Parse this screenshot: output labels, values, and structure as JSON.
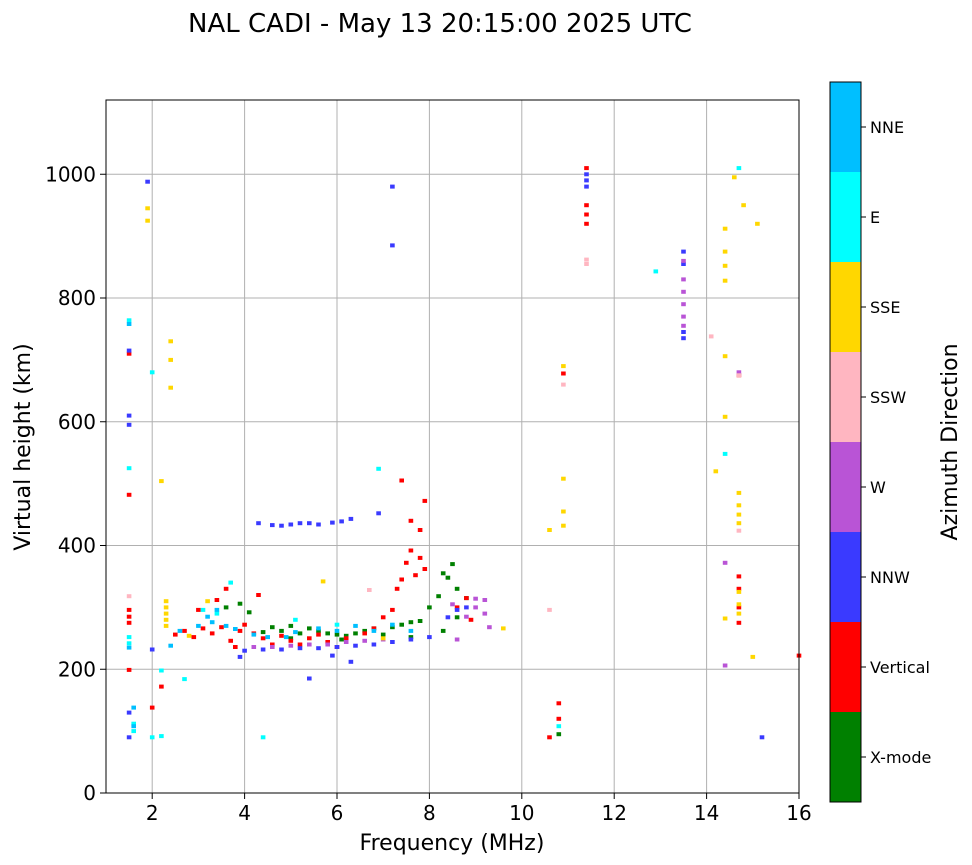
{
  "chart_data": {
    "type": "scatter",
    "title": "NAL CADI - May 13 20:15:00 2025 UTC",
    "xlabel": "Frequency (MHz)",
    "ylabel": "Virtual height (km)",
    "xlim": [
      1,
      16
    ],
    "ylim": [
      0,
      1120
    ],
    "xticks": [
      2,
      4,
      6,
      8,
      10,
      12,
      14,
      16
    ],
    "yticks": [
      0,
      200,
      400,
      600,
      800,
      1000
    ],
    "grid": true,
    "colorbar": {
      "label": "Azimuth Direction",
      "categories": [
        {
          "name": "X-mode",
          "color": "#008000"
        },
        {
          "name": "Vertical",
          "color": "#ff0000"
        },
        {
          "name": "NNW",
          "color": "#3a3aff"
        },
        {
          "name": "W",
          "color": "#b954d6"
        },
        {
          "name": "SSW",
          "color": "#ffb6c1"
        },
        {
          "name": "SSE",
          "color": "#ffd700"
        },
        {
          "name": "E",
          "color": "#00ffff"
        },
        {
          "name": "NNE",
          "color": "#00bfff"
        }
      ]
    },
    "series": [
      {
        "name": "X-mode",
        "points": [
          [
            4.4,
            260
          ],
          [
            4.6,
            268
          ],
          [
            4.8,
            262
          ],
          [
            5.0,
            270
          ],
          [
            5.2,
            258
          ],
          [
            5.4,
            266
          ],
          [
            5.6,
            262
          ],
          [
            5.8,
            258
          ],
          [
            6.0,
            256
          ],
          [
            6.2,
            254
          ],
          [
            6.4,
            258
          ],
          [
            6.6,
            262
          ],
          [
            6.8,
            266
          ],
          [
            7.0,
            256
          ],
          [
            7.2,
            268
          ],
          [
            7.4,
            272
          ],
          [
            7.6,
            276
          ],
          [
            7.8,
            278
          ],
          [
            8.0,
            300
          ],
          [
            8.2,
            318
          ],
          [
            8.3,
            355
          ],
          [
            8.4,
            348
          ],
          [
            8.5,
            370
          ],
          [
            8.6,
            330
          ],
          [
            8.8,
            315
          ],
          [
            8.3,
            262
          ],
          [
            8.6,
            284
          ],
          [
            3.6,
            300
          ],
          [
            3.9,
            306
          ],
          [
            4.1,
            292
          ],
          [
            10.8,
            95
          ],
          [
            5.0,
            250
          ],
          [
            6.1,
            248
          ],
          [
            7.6,
            252
          ]
        ]
      },
      {
        "name": "Vertical",
        "points": [
          [
            1.5,
            285
          ],
          [
            1.5,
            296
          ],
          [
            1.5,
            275
          ],
          [
            1.5,
            710
          ],
          [
            1.5,
            482
          ],
          [
            1.5,
            199
          ],
          [
            2.2,
            172
          ],
          [
            2.5,
            256
          ],
          [
            2.7,
            262
          ],
          [
            2.9,
            252
          ],
          [
            3.1,
            266
          ],
          [
            3.3,
            258
          ],
          [
            3.5,
            268
          ],
          [
            3.7,
            246
          ],
          [
            3.8,
            236
          ],
          [
            3.9,
            262
          ],
          [
            4.0,
            272
          ],
          [
            4.2,
            258
          ],
          [
            4.4,
            250
          ],
          [
            4.6,
            240
          ],
          [
            4.8,
            254
          ],
          [
            5.0,
            246
          ],
          [
            5.2,
            240
          ],
          [
            5.4,
            250
          ],
          [
            5.6,
            256
          ],
          [
            5.8,
            244
          ],
          [
            6.0,
            236
          ],
          [
            6.2,
            250
          ],
          [
            6.6,
            258
          ],
          [
            6.8,
            266
          ],
          [
            7.0,
            284
          ],
          [
            7.2,
            296
          ],
          [
            7.3,
            330
          ],
          [
            7.4,
            345
          ],
          [
            7.5,
            372
          ],
          [
            7.6,
            392
          ],
          [
            7.7,
            352
          ],
          [
            7.8,
            380
          ],
          [
            7.9,
            362
          ],
          [
            7.8,
            425
          ],
          [
            7.6,
            440
          ],
          [
            7.4,
            505
          ],
          [
            7.9,
            472
          ],
          [
            8.6,
            300
          ],
          [
            8.8,
            315
          ],
          [
            8.9,
            280
          ],
          [
            10.8,
            145
          ],
          [
            10.8,
            120
          ],
          [
            10.6,
            90
          ],
          [
            11.4,
            1010
          ],
          [
            11.4,
            950
          ],
          [
            11.4,
            920
          ],
          [
            11.4,
            935
          ],
          [
            10.9,
            678
          ],
          [
            14.7,
            675
          ],
          [
            14.7,
            350
          ],
          [
            14.7,
            330
          ],
          [
            14.7,
            300
          ],
          [
            14.7,
            275
          ],
          [
            16.0,
            222
          ],
          [
            2.0,
            138
          ],
          [
            3.0,
            296
          ],
          [
            3.6,
            330
          ],
          [
            4.3,
            320
          ],
          [
            3.4,
            312
          ]
        ]
      },
      {
        "name": "NNW",
        "points": [
          [
            1.5,
            595
          ],
          [
            1.5,
            610
          ],
          [
            1.5,
            715
          ],
          [
            1.5,
            90
          ],
          [
            1.5,
            130
          ],
          [
            1.9,
            988
          ],
          [
            4.3,
            436
          ],
          [
            4.6,
            433
          ],
          [
            4.8,
            432
          ],
          [
            5.0,
            434
          ],
          [
            5.2,
            436
          ],
          [
            5.4,
            436
          ],
          [
            5.6,
            434
          ],
          [
            5.9,
            437
          ],
          [
            6.1,
            439
          ],
          [
            6.3,
            443
          ],
          [
            6.9,
            452
          ],
          [
            4.0,
            230
          ],
          [
            4.4,
            232
          ],
          [
            4.8,
            232
          ],
          [
            5.2,
            234
          ],
          [
            5.6,
            234
          ],
          [
            6.0,
            236
          ],
          [
            6.4,
            238
          ],
          [
            6.8,
            240
          ],
          [
            7.2,
            244
          ],
          [
            7.6,
            248
          ],
          [
            8.0,
            252
          ],
          [
            8.4,
            284
          ],
          [
            8.6,
            296
          ],
          [
            8.8,
            300
          ],
          [
            5.4,
            185
          ],
          [
            5.9,
            222
          ],
          [
            6.3,
            212
          ],
          [
            7.2,
            980
          ],
          [
            7.2,
            885
          ],
          [
            11.4,
            980
          ],
          [
            11.4,
            1000
          ],
          [
            11.4,
            990
          ],
          [
            13.5,
            875
          ],
          [
            13.5,
            855
          ],
          [
            13.5,
            745
          ],
          [
            13.5,
            735
          ],
          [
            15.2,
            90
          ],
          [
            2.0,
            232
          ],
          [
            3.9,
            220
          ]
        ]
      },
      {
        "name": "W",
        "points": [
          [
            4.2,
            236
          ],
          [
            4.6,
            236
          ],
          [
            5.0,
            238
          ],
          [
            5.4,
            240
          ],
          [
            5.8,
            240
          ],
          [
            6.2,
            244
          ],
          [
            6.6,
            246
          ],
          [
            7.0,
            248
          ],
          [
            8.5,
            305
          ],
          [
            8.6,
            248
          ],
          [
            8.8,
            285
          ],
          [
            9.0,
            300
          ],
          [
            9.0,
            314
          ],
          [
            9.2,
            290
          ],
          [
            9.2,
            312
          ],
          [
            9.3,
            268
          ],
          [
            13.5,
            860
          ],
          [
            13.5,
            830
          ],
          [
            13.5,
            810
          ],
          [
            13.5,
            790
          ],
          [
            13.5,
            770
          ],
          [
            13.5,
            755
          ],
          [
            14.4,
            372
          ],
          [
            14.4,
            206
          ],
          [
            14.7,
            680
          ]
        ]
      },
      {
        "name": "SSW",
        "points": [
          [
            1.5,
            318
          ],
          [
            10.6,
            296
          ],
          [
            11.4,
            862
          ],
          [
            11.4,
            855
          ],
          [
            10.9,
            660
          ],
          [
            14.1,
            738
          ],
          [
            14.7,
            675
          ],
          [
            14.7,
            424
          ],
          [
            6.7,
            328
          ]
        ]
      },
      {
        "name": "SSE",
        "points": [
          [
            1.9,
            945
          ],
          [
            1.9,
            925
          ],
          [
            2.2,
            504
          ],
          [
            2.4,
            700
          ],
          [
            2.4,
            730
          ],
          [
            2.4,
            655
          ],
          [
            2.3,
            310
          ],
          [
            2.3,
            300
          ],
          [
            2.3,
            290
          ],
          [
            2.3,
            280
          ],
          [
            2.3,
            270
          ],
          [
            10.9,
            690
          ],
          [
            10.9,
            508
          ],
          [
            10.9,
            455
          ],
          [
            10.9,
            432
          ],
          [
            10.6,
            425
          ],
          [
            14.2,
            520
          ],
          [
            14.4,
            912
          ],
          [
            14.4,
            875
          ],
          [
            14.4,
            852
          ],
          [
            14.4,
            828
          ],
          [
            14.4,
            706
          ],
          [
            14.4,
            608
          ],
          [
            14.4,
            282
          ],
          [
            14.6,
            995
          ],
          [
            14.7,
            485
          ],
          [
            14.7,
            465
          ],
          [
            14.7,
            450
          ],
          [
            14.7,
            436
          ],
          [
            14.7,
            325
          ],
          [
            14.7,
            305
          ],
          [
            14.7,
            290
          ],
          [
            15.1,
            920
          ],
          [
            15.0,
            220
          ],
          [
            14.8,
            950
          ],
          [
            5.7,
            342
          ],
          [
            3.2,
            310
          ],
          [
            9.6,
            266
          ],
          [
            2.8,
            254
          ],
          [
            7.0,
            250
          ]
        ]
      },
      {
        "name": "E",
        "points": [
          [
            1.5,
            764
          ],
          [
            1.5,
            525
          ],
          [
            1.5,
            252
          ],
          [
            1.5,
            242
          ],
          [
            1.6,
            100
          ],
          [
            1.6,
            112
          ],
          [
            2.0,
            680
          ],
          [
            2.0,
            90
          ],
          [
            2.2,
            92
          ],
          [
            2.2,
            198
          ],
          [
            3.7,
            340
          ],
          [
            3.1,
            296
          ],
          [
            3.4,
            290
          ],
          [
            4.4,
            90
          ],
          [
            6.9,
            524
          ],
          [
            12.9,
            843
          ],
          [
            14.4,
            548
          ],
          [
            14.7,
            1010
          ],
          [
            10.8,
            108
          ],
          [
            2.7,
            184
          ],
          [
            5.1,
            280
          ],
          [
            6.0,
            272
          ]
        ]
      },
      {
        "name": "NNE",
        "points": [
          [
            1.5,
            758
          ],
          [
            1.5,
            235
          ],
          [
            1.6,
            108
          ],
          [
            1.6,
            138
          ],
          [
            2.6,
            262
          ],
          [
            3.0,
            270
          ],
          [
            3.2,
            285
          ],
          [
            3.4,
            296
          ],
          [
            3.6,
            270
          ],
          [
            3.8,
            265
          ],
          [
            4.2,
            256
          ],
          [
            4.5,
            252
          ],
          [
            4.9,
            252
          ],
          [
            5.1,
            260
          ],
          [
            5.6,
            266
          ],
          [
            6.0,
            262
          ],
          [
            6.4,
            270
          ],
          [
            6.8,
            262
          ],
          [
            7.2,
            272
          ],
          [
            7.6,
            262
          ],
          [
            2.4,
            238
          ],
          [
            3.3,
            276
          ]
        ]
      }
    ]
  }
}
